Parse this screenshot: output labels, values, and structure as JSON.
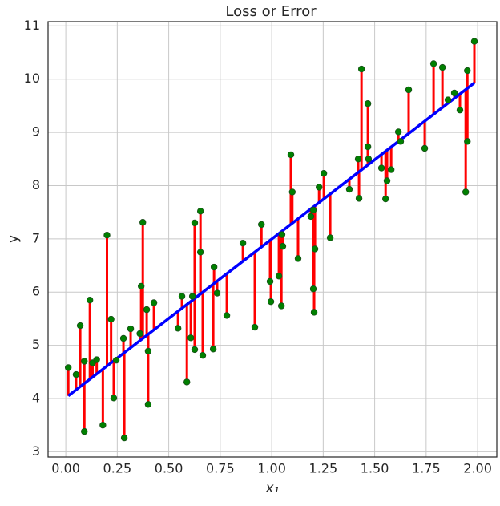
{
  "chart_data": {
    "type": "scatter",
    "title": "Loss or Error",
    "xlabel": "x₁",
    "ylabel": "y",
    "xlim": [
      -0.086,
      2.093
    ],
    "ylim": [
      2.9,
      11.08
    ],
    "xticks": [
      {
        "value": 0,
        "label": "0.00"
      },
      {
        "value": 0.25,
        "label": "0.25"
      },
      {
        "value": 0.5,
        "label": "0.50"
      },
      {
        "value": 0.75,
        "label": "0.75"
      },
      {
        "value": 1,
        "label": "1.00"
      },
      {
        "value": 1.25,
        "label": "1.25"
      },
      {
        "value": 1.5,
        "label": "1.50"
      },
      {
        "value": 1.75,
        "label": "1.75"
      },
      {
        "value": 2,
        "label": "2.00"
      }
    ],
    "yticks": [
      3,
      4,
      5,
      6,
      7,
      8,
      9,
      10,
      11
    ],
    "grid": true,
    "residuals": true,
    "residual_color": "red",
    "series": [
      {
        "kind": "points",
        "color": "green",
        "x": [
          0.012,
          0.05,
          0.07,
          0.09,
          0.09,
          0.117,
          0.13,
          0.15,
          0.18,
          0.2,
          0.22,
          0.233,
          0.245,
          0.28,
          0.284,
          0.315,
          0.36,
          0.366,
          0.374,
          0.393,
          0.4,
          0.4,
          0.428,
          0.545,
          0.564,
          0.588,
          0.607,
          0.615,
          0.626,
          0.626,
          0.654,
          0.654,
          0.665,
          0.72,
          0.716,
          0.735,
          0.782,
          0.86,
          0.918,
          0.95,
          0.992,
          0.996,
          1.035,
          1.047,
          1.05,
          1.054,
          1.093,
          1.1,
          1.128,
          1.19,
          1.202,
          1.206,
          1.202,
          1.21,
          1.23,
          1.253,
          1.284,
          1.377,
          1.42,
          1.424,
          1.436,
          1.467,
          1.467,
          1.47,
          1.533,
          1.553,
          1.56,
          1.58,
          1.615,
          1.626,
          1.665,
          1.743,
          1.786,
          1.829,
          1.856,
          1.887,
          1.914,
          1.942,
          1.95,
          1.95,
          1.984
        ],
        "values": [
          4.58,
          4.45,
          5.37,
          4.7,
          3.38,
          5.85,
          4.67,
          4.73,
          3.5,
          7.07,
          5.49,
          4.01,
          4.72,
          5.13,
          3.26,
          5.31,
          5.22,
          6.11,
          7.31,
          5.67,
          4.89,
          3.89,
          5.8,
          5.32,
          5.92,
          4.31,
          5.14,
          5.92,
          7.3,
          4.92,
          7.52,
          6.75,
          4.81,
          6.47,
          4.93,
          5.98,
          5.56,
          6.92,
          5.34,
          7.27,
          6.2,
          5.82,
          6.3,
          5.74,
          7.08,
          6.86,
          8.58,
          7.88,
          6.63,
          7.42,
          6.06,
          5.62,
          7.54,
          6.81,
          7.97,
          8.23,
          7.02,
          7.93,
          8.5,
          7.76,
          10.19,
          9.54,
          8.73,
          8.5,
          8.33,
          7.75,
          8.09,
          8.3,
          9.01,
          8.83,
          9.8,
          8.7,
          10.29,
          10.22,
          9.61,
          9.74,
          9.42,
          7.88,
          10.16,
          8.83,
          10.71
        ]
      },
      {
        "kind": "line",
        "color": "blue",
        "x": [
          0.012,
          1.984
        ],
        "values": [
          4.05,
          9.93
        ]
      }
    ]
  }
}
